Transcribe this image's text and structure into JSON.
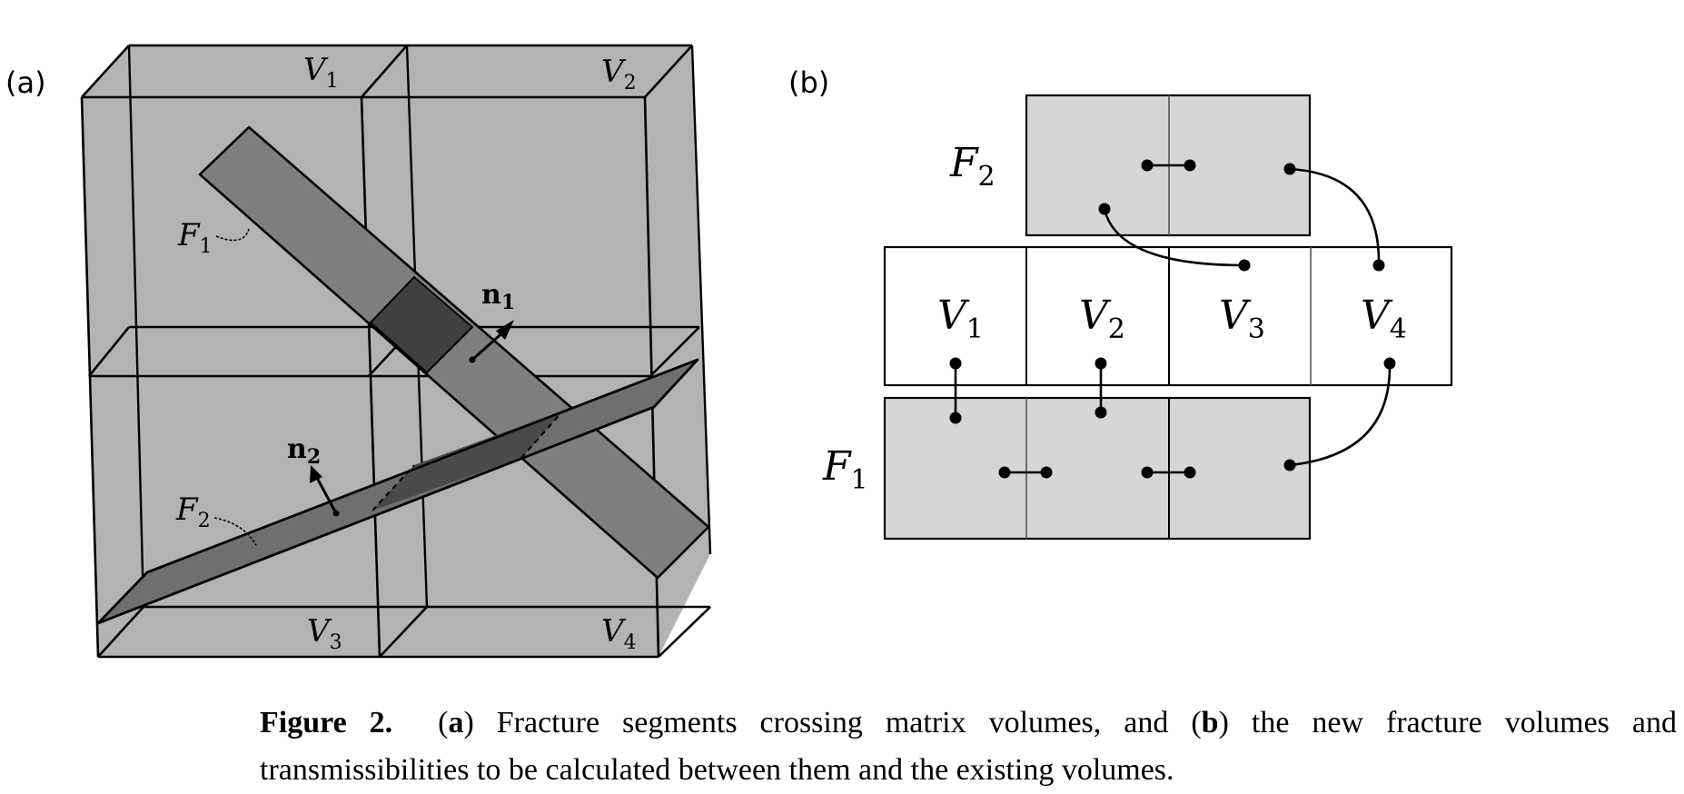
{
  "panel_a": {
    "label": "(a)",
    "volumes": [
      {
        "name": "V",
        "sub": "1"
      },
      {
        "name": "V",
        "sub": "2"
      },
      {
        "name": "V",
        "sub": "3"
      },
      {
        "name": "V",
        "sub": "4"
      }
    ],
    "fractures": [
      {
        "name": "F",
        "sub": "1"
      },
      {
        "name": "F",
        "sub": "2"
      }
    ],
    "normals": [
      {
        "name": "n",
        "sub": "1"
      },
      {
        "name": "n",
        "sub": "2"
      }
    ]
  },
  "panel_b": {
    "label": "(b)",
    "fracture_rows": [
      {
        "name": "F",
        "sub": "2"
      },
      {
        "name": "F",
        "sub": "1"
      }
    ],
    "volumes": [
      {
        "name": "V",
        "sub": "1"
      },
      {
        "name": "V",
        "sub": "2"
      },
      {
        "name": "V",
        "sub": "3"
      },
      {
        "name": "V",
        "sub": "4"
      }
    ]
  },
  "caption": {
    "label": "Figure 2.",
    "open_a": "(",
    "a": "a",
    "text_a": ") Fracture segments crossing matrix volumes, and (",
    "b": "b",
    "text_b1": ") the new fracture volumes and",
    "text_b2": "transmissibilities to be calculated between them and the existing volumes."
  },
  "colors": {
    "box_fill": "#b3b3b3",
    "fracture_fill": "#7f7f7f",
    "overlap_fill": "#404040",
    "fracture_cell_fill": "#d6d6d6",
    "line": "#000000"
  }
}
